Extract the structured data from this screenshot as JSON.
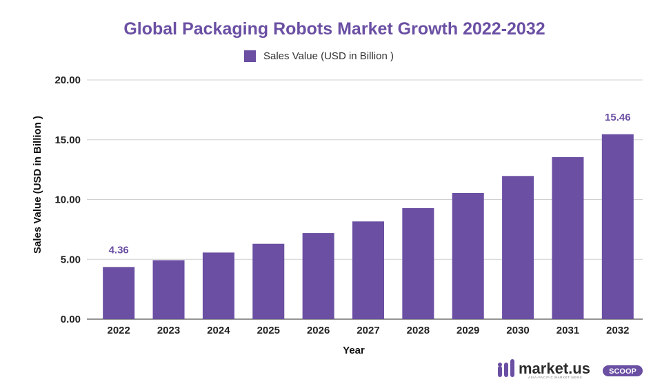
{
  "chart_data": {
    "type": "bar",
    "title": "Global Packaging Robots Market Growth 2022-2032",
    "xlabel": "Year",
    "ylabel": "Sales Value (USD in Billion )",
    "ylim": [
      0,
      20
    ],
    "yticks": [
      "0.00",
      "5.00",
      "10.00",
      "15.00",
      "20.00"
    ],
    "grid": true,
    "legend_position": "top-center",
    "categories": [
      "2022",
      "2023",
      "2024",
      "2025",
      "2026",
      "2027",
      "2028",
      "2029",
      "2030",
      "2031",
      "2032"
    ],
    "series": [
      {
        "name": "Sales Value (USD in Billion )",
        "color": "#6a4fa3",
        "values": [
          4.36,
          4.93,
          5.57,
          6.3,
          7.2,
          8.17,
          9.28,
          10.55,
          11.97,
          13.55,
          15.46
        ]
      }
    ],
    "data_labels": [
      {
        "category": "2022",
        "text": "4.36"
      },
      {
        "category": "2032",
        "text": "15.46"
      }
    ]
  },
  "brand": {
    "name": "market.us",
    "tagline": "ASIA-PACIFIC MARKET NEWS",
    "badge": "SCOOP",
    "color": "#6a4fa3"
  }
}
